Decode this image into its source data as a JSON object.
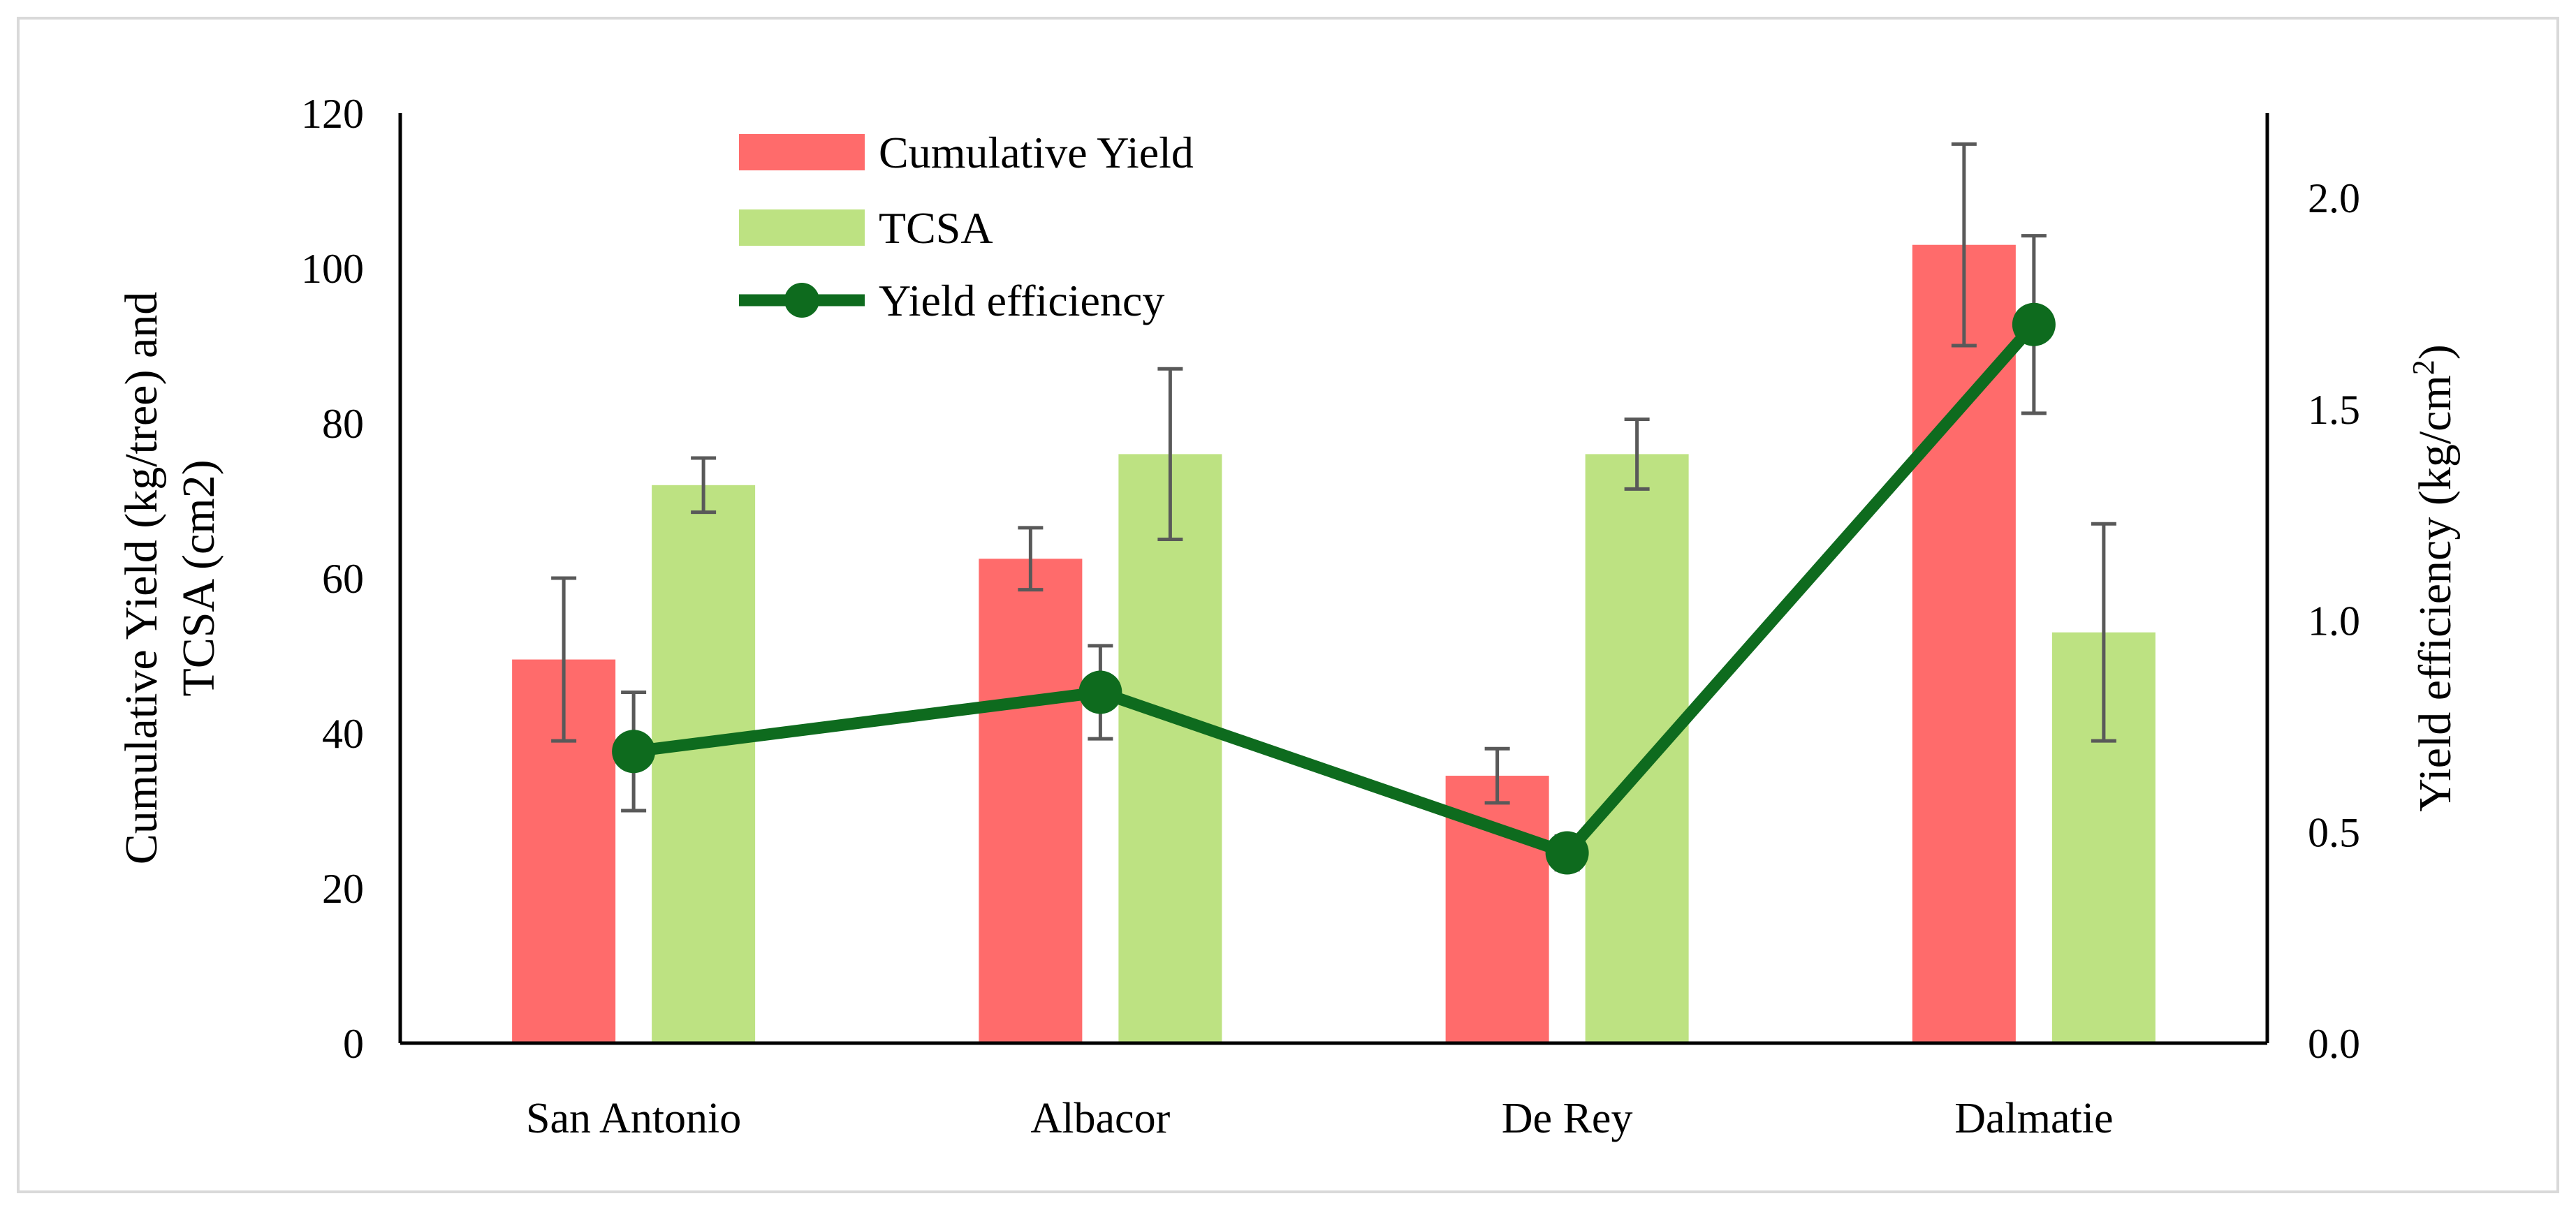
{
  "chart_data": {
    "type": "bar",
    "categories": [
      "San Antonio",
      "Albacor",
      "De Rey",
      "Dalmatie"
    ],
    "series": [
      {
        "name": "Cumulative Yield",
        "kind": "bar",
        "axis": "left",
        "color": "#ff6b6b",
        "values": [
          49.5,
          62.5,
          34.5,
          103
        ],
        "errors": [
          10.5,
          4,
          3.5,
          13
        ]
      },
      {
        "name": "TCSA",
        "kind": "bar",
        "axis": "left",
        "color": "#bde282",
        "values": [
          72,
          76,
          76,
          53
        ],
        "errors": [
          3.5,
          11,
          4.5,
          14
        ]
      },
      {
        "name": "Yield efficiency",
        "kind": "line",
        "axis": "right",
        "color": "#0e6b1e",
        "values": [
          0.69,
          0.83,
          0.45,
          1.7
        ],
        "errors": [
          0.14,
          0.11,
          0.04,
          0.21
        ]
      }
    ],
    "ylabel_left_lines": [
      "Cumulative Yield (kg/tree) and",
      "TCSA (cm2)"
    ],
    "ylabel_right": {
      "text": "Yield efficiency (kg/cm",
      "sup": "2",
      "tail": ")"
    },
    "ylim_left": [
      0,
      120
    ],
    "yticks_left": [
      0,
      20,
      40,
      60,
      80,
      100,
      120
    ],
    "ylim_right": [
      0,
      2.2
    ],
    "yticks_right": [
      "0.0",
      "0.5",
      "1.0",
      "1.5",
      "2.0"
    ],
    "yticks_right_values": [
      0,
      0.5,
      1.0,
      1.5,
      2.0
    ],
    "grid": false,
    "legend_position": "top-left inside"
  }
}
